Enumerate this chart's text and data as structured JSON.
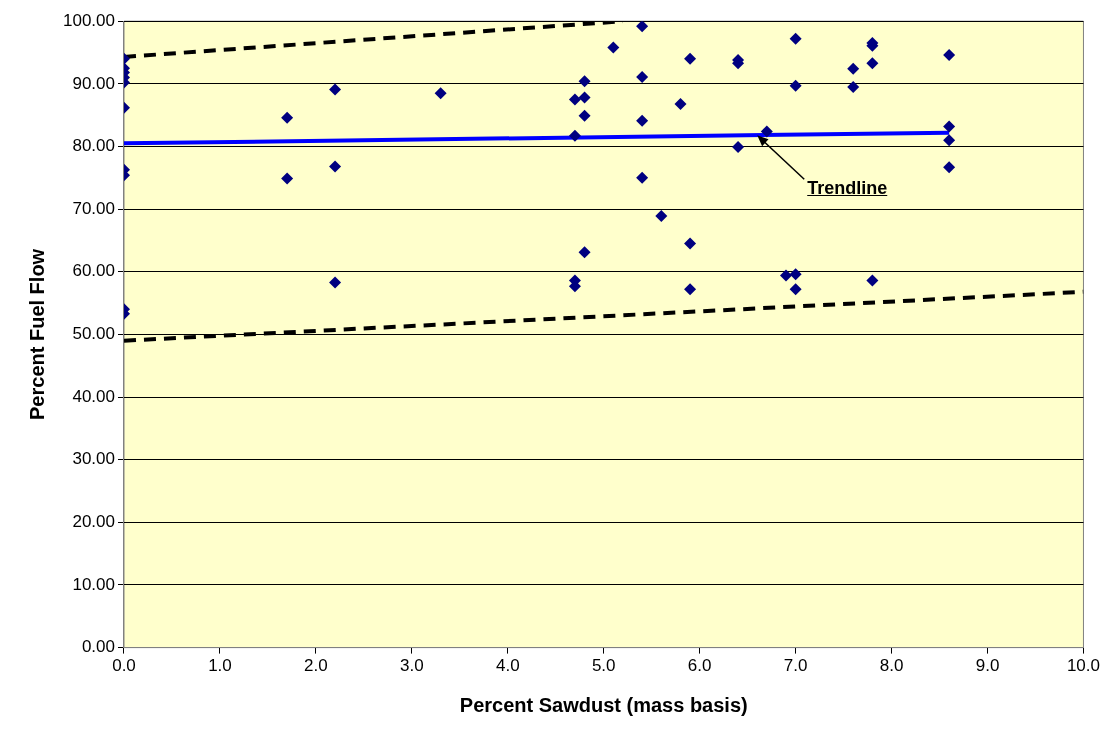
{
  "chart_data": {
    "type": "scatter",
    "xlabel": "Percent Sawdust (mass basis)",
    "ylabel": "Percent Fuel Flow",
    "xlim": [
      0,
      10
    ],
    "ylim": [
      0,
      100
    ],
    "xticks": [
      {
        "value": 0,
        "label": "0.0"
      },
      {
        "value": 1,
        "label": "1.0"
      },
      {
        "value": 2,
        "label": "2.0"
      },
      {
        "value": 3,
        "label": "3.0"
      },
      {
        "value": 4,
        "label": "4.0"
      },
      {
        "value": 5,
        "label": "5.0"
      },
      {
        "value": 6,
        "label": "6.0"
      },
      {
        "value": 7,
        "label": "7.0"
      },
      {
        "value": 8,
        "label": "8.0"
      },
      {
        "value": 9,
        "label": "9.0"
      },
      {
        "value": 10,
        "label": "10.0"
      }
    ],
    "yticks": [
      {
        "value": 0,
        "label": "0.00"
      },
      {
        "value": 10,
        "label": "10.00"
      },
      {
        "value": 20,
        "label": "20.00"
      },
      {
        "value": 30,
        "label": "30.00"
      },
      {
        "value": 40,
        "label": "40.00"
      },
      {
        "value": 50,
        "label": "50.00"
      },
      {
        "value": 60,
        "label": "60.00"
      },
      {
        "value": 70,
        "label": "70.00"
      },
      {
        "value": 80,
        "label": "80.00"
      },
      {
        "value": 90,
        "label": "90.00"
      },
      {
        "value": 100,
        "label": "100.00"
      }
    ],
    "grid": "y",
    "legend": false,
    "series": [
      {
        "type": "scatter",
        "color": "#000080",
        "marker": "diamond",
        "x": [
          0,
          0,
          0,
          0,
          0,
          0,
          0,
          0,
          0,
          0,
          1.7,
          1.7,
          2.2,
          2.2,
          2.2,
          3.3,
          4.7,
          4.7,
          4.7,
          4.7,
          4.8,
          4.8,
          4.8,
          4.8,
          5.1,
          5.4,
          5.4,
          5.4,
          5.4,
          5.6,
          5.8,
          5.9,
          5.9,
          5.9,
          6.4,
          6.4,
          6.4,
          6.7,
          6.9,
          7.0,
          7.0,
          7.0,
          7.0,
          7.6,
          7.6,
          7.8,
          7.8,
          7.8,
          7.8,
          8.6,
          8.6,
          8.6,
          8.6
        ],
        "values": [
          94.0,
          92.5,
          91.8,
          91.0,
          90.2,
          86.2,
          76.3,
          75.4,
          54.0,
          53.3,
          84.6,
          74.9,
          89.1,
          76.8,
          58.3,
          88.5,
          87.5,
          81.7,
          58.6,
          57.7,
          90.4,
          87.8,
          84.9,
          63.1,
          95.8,
          99.2,
          91.1,
          84.1,
          75.0,
          68.9,
          86.8,
          94.0,
          64.5,
          57.2,
          93.8,
          93.3,
          79.9,
          82.4,
          59.4,
          97.2,
          89.7,
          59.6,
          57.2,
          92.4,
          89.5,
          96.5,
          96.1,
          93.3,
          58.6,
          94.6,
          83.2,
          81.0,
          76.7
        ]
      },
      {
        "type": "line",
        "color": "#0000ff",
        "marker": "none",
        "line_style": "solid",
        "x": [
          0,
          8.6
        ],
        "values": [
          80.5,
          82.2
        ]
      },
      {
        "type": "line",
        "color": "#000000",
        "marker": "none",
        "line_style": "dashed",
        "x": [
          0,
          5.2
        ],
        "values": [
          94.3,
          100
        ]
      },
      {
        "type": "line",
        "color": "#000000",
        "marker": "none",
        "line_style": "dashed",
        "x": [
          0,
          10
        ],
        "values": [
          49.0,
          56.8
        ]
      }
    ],
    "annotations": [
      {
        "text": "Trendline",
        "x": 6.6,
        "y": 81.8
      }
    ]
  }
}
